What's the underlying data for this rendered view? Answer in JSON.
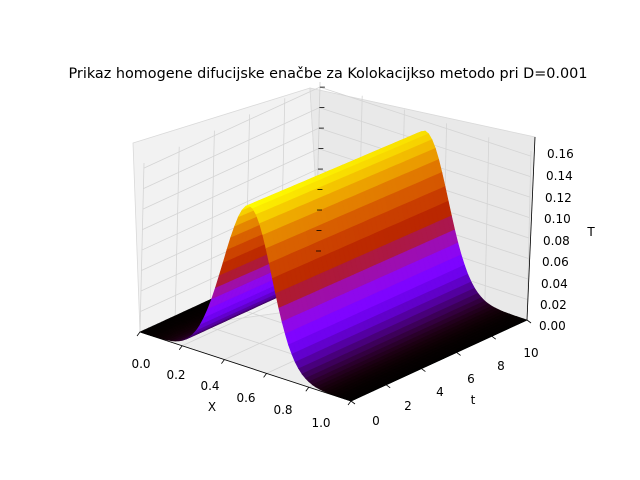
{
  "chart_data": {
    "type": "surface",
    "title": "Prikaz homogene difucijske enačbe za Kolokacijkso metodo pri D=0.001",
    "xlabel": "X",
    "ylabel": "t",
    "zlabel": "T",
    "x_ticks": [
      "0.0",
      "0.2",
      "0.4",
      "0.6",
      "0.8",
      "1.0"
    ],
    "t_ticks": [
      "0",
      "2",
      "4",
      "6",
      "8",
      "10"
    ],
    "z_ticks": [
      "0.00",
      "0.02",
      "0.04",
      "0.06",
      "0.08",
      "0.10",
      "0.12",
      "0.14",
      "0.16"
    ],
    "xlim": [
      0,
      1
    ],
    "tlim": [
      0,
      10
    ],
    "zlim": [
      0,
      0.165
    ],
    "peak_value": 0.157,
    "peak_x": 0.5,
    "colormap": "gnuplot",
    "grid": true
  }
}
